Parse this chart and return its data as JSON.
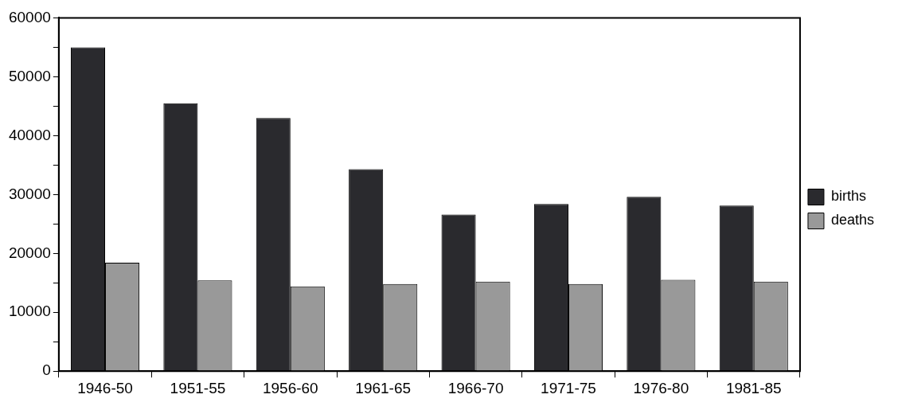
{
  "chart_data": {
    "type": "bar",
    "categories": [
      "1946-50",
      "1951-55",
      "1956-60",
      "1961-65",
      "1966-70",
      "1971-75",
      "1976-80",
      "1981-85"
    ],
    "series": [
      {
        "name": "births",
        "color": "#2a2a2e",
        "values": [
          55000,
          45500,
          43000,
          34300,
          26600,
          28400,
          29600,
          28100
        ]
      },
      {
        "name": "deaths",
        "color": "#999999",
        "values": [
          18400,
          15400,
          14400,
          14800,
          15200,
          14800,
          15500,
          15200
        ]
      }
    ],
    "ylim": [
      0,
      60000
    ],
    "yticks": [
      0,
      {
        "value": 5000,
        "label": null
      },
      10000,
      {
        "value": 15000,
        "label": null
      },
      20000,
      {
        "value": 25000,
        "label": null
      },
      30000,
      {
        "value": 35000,
        "label": null
      },
      40000,
      {
        "value": 45000,
        "label": null
      },
      50000,
      {
        "value": 55000,
        "label": null
      },
      60000
    ],
    "grid": false,
    "legend": "right"
  }
}
